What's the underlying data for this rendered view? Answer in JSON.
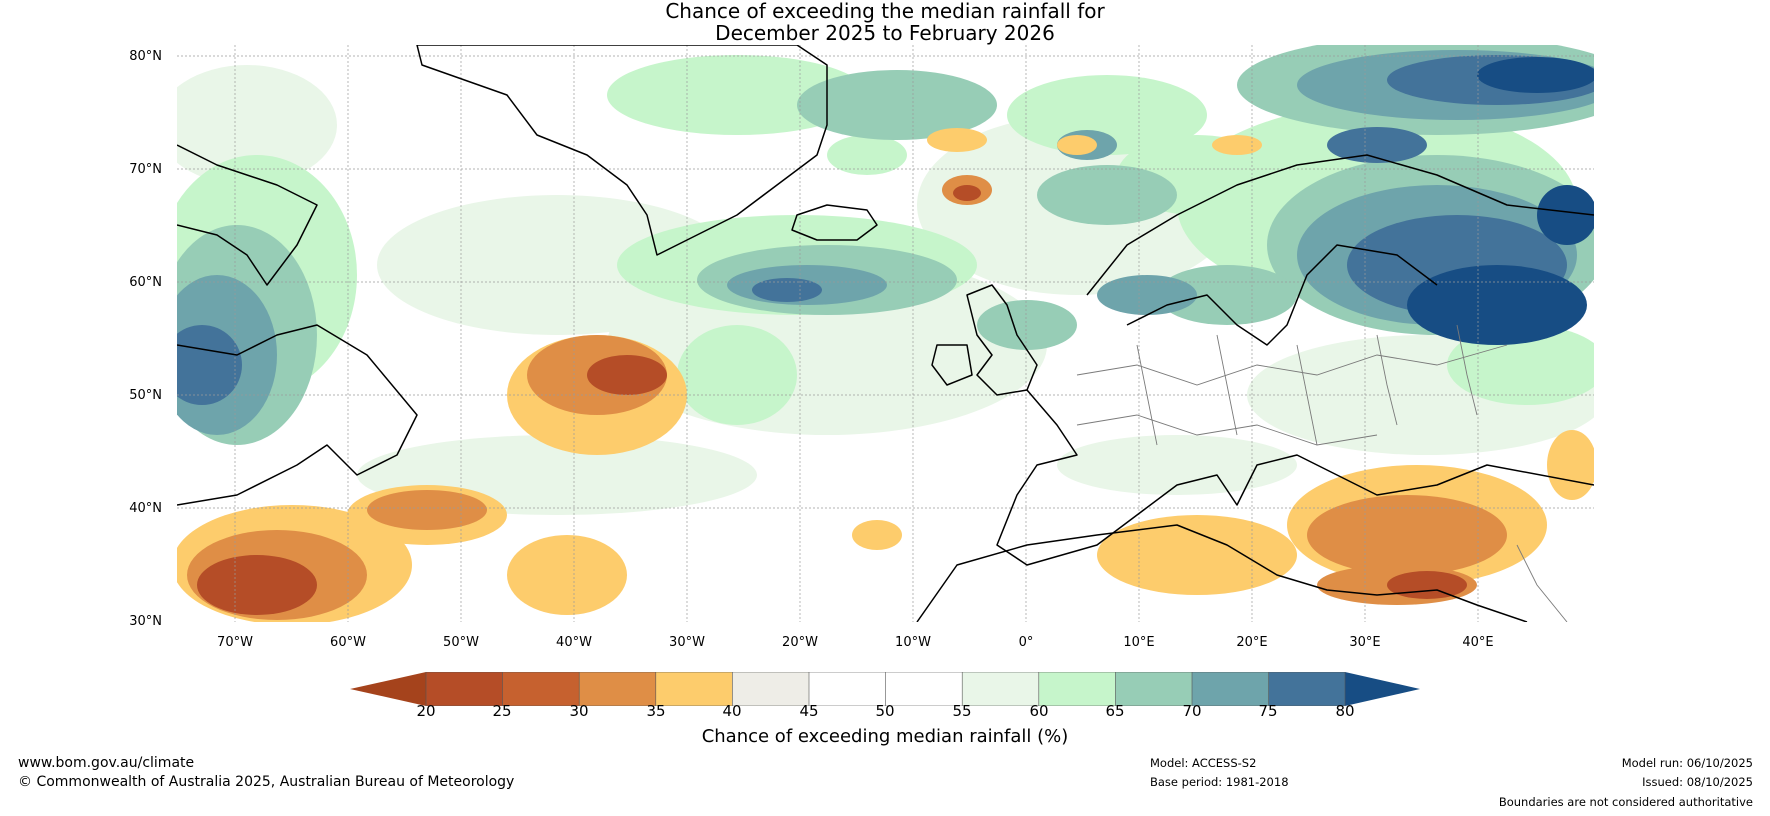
{
  "title": {
    "line1": "Chance of exceeding the median rainfall for",
    "line2": "December 2025 to February 2026"
  },
  "axes": {
    "lat_labels": [
      "80°N",
      "70°N",
      "60°N",
      "50°N",
      "40°N",
      "30°N"
    ],
    "lon_labels": [
      "70°W",
      "60°W",
      "50°W",
      "40°W",
      "30°W",
      "20°W",
      "10°W",
      "0°",
      "10°E",
      "20°E",
      "30°E",
      "40°E"
    ]
  },
  "colorbar": {
    "ticks": [
      "20",
      "25",
      "30",
      "35",
      "40",
      "45",
      "50",
      "55",
      "60",
      "65",
      "70",
      "75",
      "80"
    ],
    "label": "Chance of exceeding median rainfall (%)",
    "colors": [
      "#a5431c",
      "#b54d27",
      "#c6612f",
      "#df8e46",
      "#fdcc6c",
      "#eeede7",
      "#ffffff",
      "#ffffff",
      "#e9f6e8",
      "#c6f5cb",
      "#97cdb6",
      "#6ea4ab",
      "#43739a",
      "#174d84"
    ]
  },
  "footer": {
    "website": "www.bom.gov.au/climate",
    "copyright": "© Commonwealth of Australia 2025, Australian Bureau of Meteorology",
    "model": "Model: ACCESS-S2",
    "base_period": "Base period: 1981-2018",
    "model_run": "Model run: 06/10/2025",
    "issued": "Issued: 08/10/2025",
    "disclaimer": "Boundaries are not considered authoritative"
  }
}
